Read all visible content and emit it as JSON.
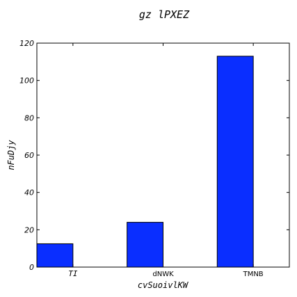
{
  "chart_data": {
    "type": "bar",
    "title": "gz lPXEZ",
    "xlabel": "cvSuoivlKW",
    "ylabel": "nFuDjy",
    "categories": [
      "TI",
      "dNWK",
      "TMNB"
    ],
    "values": [
      12.5,
      24,
      113
    ],
    "ylim": [
      0,
      120
    ],
    "yticks": [
      "0",
      "20",
      "40",
      "60",
      "80",
      "100",
      "120"
    ],
    "bar_color": "#0a2eff",
    "grid": false
  }
}
